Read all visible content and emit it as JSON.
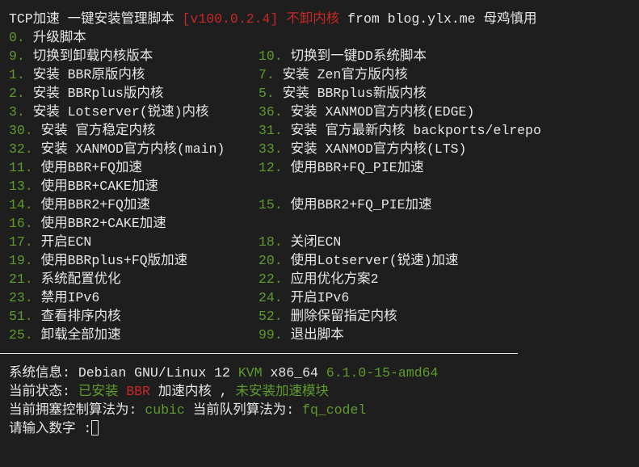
{
  "colors": {
    "background": "#1e1e1e",
    "text": "#e6e6e6",
    "green": "#5e9b2c",
    "red": "#c62828"
  },
  "header": {
    "title": "TCP加速 一键安装管理脚本 ",
    "version": "[v100.0.2.4] 不卸内核",
    "suffix": " from blog.ylx.me 母鸡慎用"
  },
  "rows": [
    {
      "left": {
        "num": "0.",
        "label": " 升级脚本"
      }
    },
    {
      "left": {
        "num": "9.",
        "label": " 切换到卸载内核版本"
      },
      "right": {
        "num": "10.",
        "label": " 切换到一键DD系统脚本"
      }
    },
    {
      "left": {
        "num": "1.",
        "label": " 安装 BBR原版内核"
      },
      "right": {
        "num": "7.",
        "label": " 安装 Zen官方版内核"
      }
    },
    {
      "left": {
        "num": "2.",
        "label": " 安装 BBRplus版内核"
      },
      "right": {
        "num": "5.",
        "label": " 安装 BBRplus新版内核"
      }
    },
    {
      "left": {
        "num": "3.",
        "label": " 安装 Lotserver(锐速)内核"
      },
      "right": {
        "num": "36.",
        "label": " 安装 XANMOD官方内核(EDGE)"
      }
    },
    {
      "left": {
        "num": "30.",
        "label": " 安装 官方稳定内核"
      },
      "right": {
        "num": "31.",
        "label": " 安装 官方最新内核 backports/elrepo"
      }
    },
    {
      "left": {
        "num": "32.",
        "label": " 安装 XANMOD官方内核(main)"
      },
      "right": {
        "num": "33.",
        "label": " 安装 XANMOD官方内核(LTS)"
      }
    },
    {
      "left": {
        "num": "11.",
        "label": " 使用BBR+FQ加速"
      },
      "right": {
        "num": "12.",
        "label": " 使用BBR+FQ_PIE加速"
      }
    },
    {
      "left": {
        "num": "13.",
        "label": " 使用BBR+CAKE加速"
      }
    },
    {
      "left": {
        "num": "14.",
        "label": " 使用BBR2+FQ加速"
      },
      "right": {
        "num": "15.",
        "label": " 使用BBR2+FQ_PIE加速"
      }
    },
    {
      "left": {
        "num": "16.",
        "label": " 使用BBR2+CAKE加速"
      }
    },
    {
      "left": {
        "num": "17.",
        "label": " 开启ECN"
      },
      "right": {
        "num": "18.",
        "label": " 关闭ECN"
      }
    },
    {
      "left": {
        "num": "19.",
        "label": " 使用BBRplus+FQ版加速"
      },
      "right": {
        "num": "20.",
        "label": " 使用Lotserver(锐速)加速"
      }
    },
    {
      "left": {
        "num": "21.",
        "label": " 系统配置优化"
      },
      "right": {
        "num": "22.",
        "label": " 应用优化方案2"
      }
    },
    {
      "left": {
        "num": "23.",
        "label": " 禁用IPv6"
      },
      "right": {
        "num": "24.",
        "label": " 开启IPv6"
      }
    },
    {
      "left": {
        "num": "51.",
        "label": " 查看排序内核"
      },
      "right": {
        "num": "52.",
        "label": " 删除保留指定内核"
      }
    },
    {
      "left": {
        "num": "25.",
        "label": " 卸载全部加速"
      },
      "right": {
        "num": "99.",
        "label": " 退出脚本"
      }
    }
  ],
  "sysinfo": {
    "label": "系统信息: ",
    "os": "Debian GNU/Linux 12 ",
    "virt": "KVM",
    "arch": " x86_64 ",
    "kernel": "6.1.0-15-amd64"
  },
  "status": {
    "label": "当前状态: ",
    "installed": "已安装 ",
    "bbr": "BBR",
    "mid": " 加速内核 , ",
    "module": "未安装加速模块"
  },
  "algo": {
    "label": "当前拥塞控制算法为: ",
    "cc": "cubic",
    "qlabel": " 当前队列算法为: ",
    "qdisc": "fq_codel"
  },
  "prompt": {
    "label": "请输入数字 :"
  }
}
